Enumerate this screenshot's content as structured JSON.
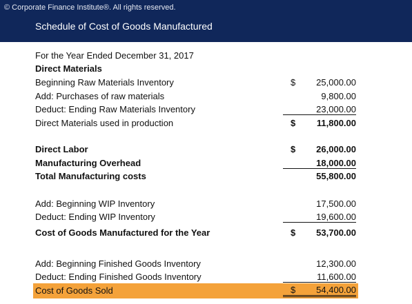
{
  "header": {
    "copyright": "© Corporate Finance Institute®. All rights reserved.",
    "title": "Schedule of Cost of Goods Manufactured"
  },
  "schedule": {
    "period": "For the Year Ended December 31, 2017",
    "direct_materials": {
      "heading": "Direct Materials",
      "beginning": {
        "label": "Beginning Raw Materials Inventory",
        "currency": "$",
        "amount": "25,000.00"
      },
      "purchases": {
        "label": "Add: Purchases of raw materials",
        "amount": "9,800.00"
      },
      "ending": {
        "label": "Deduct: Ending Raw Materials Inventory",
        "amount": "23,000.00"
      },
      "used": {
        "label": "Direct Materials used in production",
        "currency": "$",
        "amount": "11,800.00"
      }
    },
    "direct_labor": {
      "label": "Direct Labor",
      "currency": "$",
      "amount": "26,000.00"
    },
    "overhead": {
      "label": "Manufacturing Overhead",
      "amount": "18,000.00"
    },
    "total_mfg": {
      "label": "Total Manufacturing costs",
      "amount": "55,800.00"
    },
    "wip_begin": {
      "label": "Add: Beginning WIP Inventory",
      "amount": "17,500.00"
    },
    "wip_end": {
      "label": "Deduct: Ending WIP Inventory",
      "amount": "19,600.00"
    },
    "cogm": {
      "label": "Cost of Goods Manufactured for the Year",
      "currency": "$",
      "amount": "53,700.00"
    },
    "fg_begin": {
      "label": "Add: Beginning Finished Goods Inventory",
      "amount": "12,300.00"
    },
    "fg_end": {
      "label": "Deduct: Ending Finished Goods Inventory",
      "amount": "11,600.00"
    },
    "cogs": {
      "label": "Cost of Goods Sold",
      "currency": "$",
      "amount": "54,400.00"
    }
  },
  "colors": {
    "banner": "#10275a",
    "highlight": "#f4a23a"
  }
}
